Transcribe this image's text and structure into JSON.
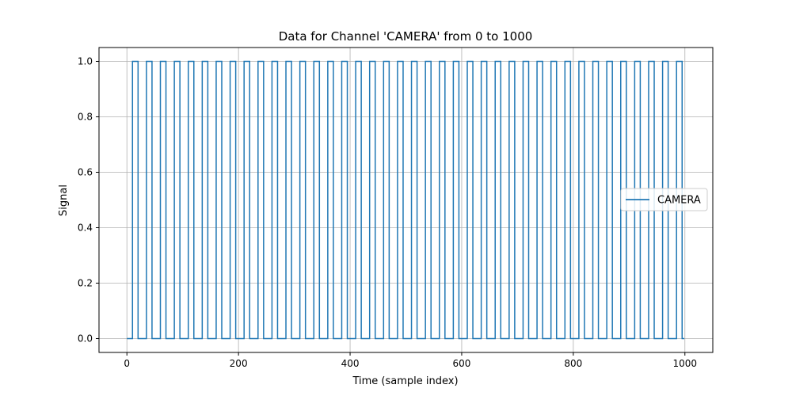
{
  "chart_data": {
    "type": "line",
    "title": "Data for Channel 'CAMERA' from 0 to 1000",
    "xlabel": "Time (sample index)",
    "ylabel": "Signal",
    "xlim": [
      -50,
      1050
    ],
    "ylim": [
      -0.05,
      1.05
    ],
    "x_ticks": [
      0,
      200,
      400,
      600,
      800,
      1000
    ],
    "y_ticks": [
      0.0,
      0.2,
      0.4,
      0.6,
      0.8,
      1.0
    ],
    "x_tick_labels": [
      "0",
      "200",
      "400",
      "600",
      "800",
      "1000"
    ],
    "y_tick_labels": [
      "0.0",
      "0.2",
      "0.4",
      "0.6",
      "0.8",
      "1.0"
    ],
    "grid": true,
    "legend_position": "center-right",
    "series": [
      {
        "name": "CAMERA",
        "color": "#1f77b4",
        "drawstyle": "step",
        "x_start": 0,
        "x_end": 999,
        "low": 0,
        "high": 1,
        "pulse_period": 25,
        "first_rise": 10,
        "pulse_width": 10,
        "pulse_count": 40
      }
    ]
  }
}
